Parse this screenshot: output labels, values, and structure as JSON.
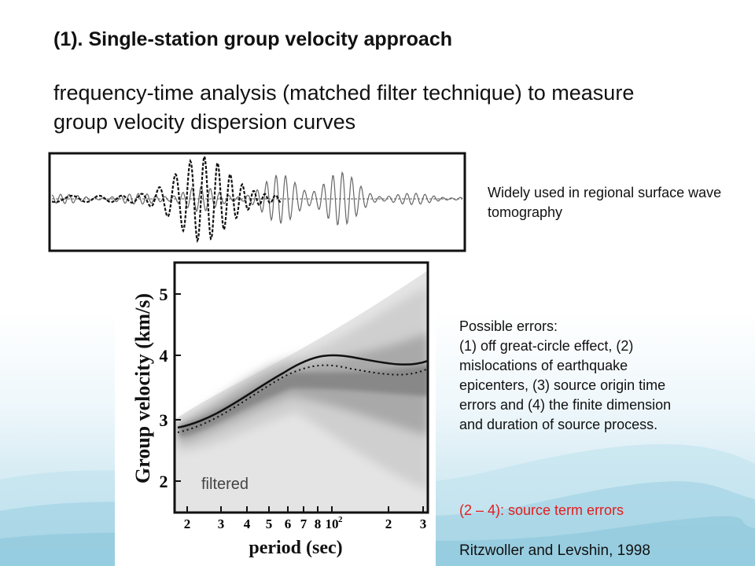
{
  "slide": {
    "title": "(1). Single-station group velocity approach",
    "subtitle": "frequency-time analysis (matched filter technique) to measure group velocity dispersion curves"
  },
  "notes": {
    "regional": "Widely used in regional surface wave tomography",
    "errors": "Possible errors:\n(1) off great-circle effect, (2) mislocations of earthquake epicenters, (3) source origin time errors and (4) the finite dimension and duration of source process.",
    "source_term": "(2 – 4): source term errors",
    "reference": "Ritzwoller and Levshin, 1998"
  },
  "figure": {
    "ylabel": "Group velocity (km/s)",
    "xlabel": "period (sec)",
    "filtered_label": "filtered",
    "y_ticks": [
      "5",
      "4",
      "3",
      "2"
    ],
    "x_ticks": [
      "2",
      "3",
      "4",
      "5",
      "6",
      "7",
      "8",
      "10",
      "2",
      "3"
    ],
    "x_exponent": "2"
  },
  "colors": {
    "text": "#111111",
    "accent_red": "#e21c1c",
    "wave_bg": "#a9d6e6"
  }
}
